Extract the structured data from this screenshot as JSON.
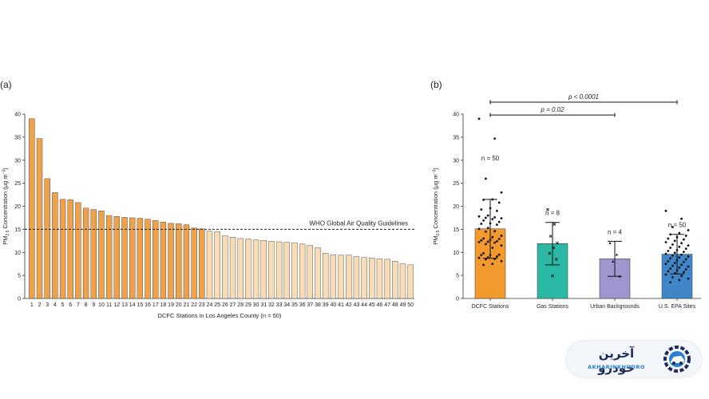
{
  "chart_data": [
    {
      "type": "bar",
      "panel_label": "(a)",
      "xlabel": "DCFC Stations in Los Angeles County (n = 50)",
      "ylabel_main": "PM",
      "ylabel_sub": "2.5",
      "ylabel_rest": " Concentration (μg m",
      "ylabel_sup": "−3",
      "ylabel_end": ")",
      "ylim": [
        0,
        40
      ],
      "yticks": [
        0,
        5,
        10,
        15,
        20,
        25,
        30,
        35,
        40
      ],
      "categories": [
        "1",
        "2",
        "3",
        "4",
        "5",
        "6",
        "7",
        "8",
        "9",
        "10",
        "11",
        "12",
        "13",
        "14",
        "15",
        "16",
        "17",
        "18",
        "19",
        "20",
        "21",
        "22",
        "23",
        "24",
        "25",
        "26",
        "27",
        "28",
        "29",
        "30",
        "31",
        "32",
        "33",
        "34",
        "35",
        "36",
        "37",
        "38",
        "39",
        "40",
        "41",
        "42",
        "43",
        "44",
        "45",
        "46",
        "47",
        "48",
        "49",
        "50"
      ],
      "values": [
        39.0,
        34.7,
        26.0,
        23.0,
        21.5,
        21.4,
        20.8,
        19.6,
        19.3,
        19.0,
        18.0,
        17.8,
        17.6,
        17.5,
        17.4,
        17.2,
        16.9,
        16.6,
        16.3,
        16.2,
        16.0,
        15.3,
        15.1,
        14.6,
        14.5,
        13.6,
        13.3,
        13.0,
        12.9,
        12.7,
        12.6,
        12.4,
        12.3,
        12.2,
        12.1,
        11.8,
        11.5,
        11.0,
        9.8,
        9.5,
        9.4,
        9.4,
        9.1,
        8.9,
        8.8,
        8.6,
        8.5,
        8.1,
        7.5,
        7.3
      ],
      "highlight_count": 23,
      "reference_line": {
        "value": 15,
        "label": "WHO Global Air Quality Guidelines"
      },
      "colors": {
        "above": "#f0a14b",
        "below": "#f9dcb4",
        "edge": "#333333"
      }
    },
    {
      "type": "bar",
      "panel_label": "(b)",
      "ylabel_main": "PM",
      "ylabel_sub": "2.5",
      "ylabel_rest": " Concentration (μg m",
      "ylabel_sup": "−3",
      "ylabel_end": ")",
      "ylim": [
        0,
        40
      ],
      "yticks": [
        0,
        5,
        10,
        15,
        20,
        25,
        30,
        35,
        40
      ],
      "categories": [
        "DCFC Stations",
        "Gas Stations",
        "Urban Backgrounds",
        "U.S. EPA Sites"
      ],
      "means": [
        15.1,
        11.9,
        8.6,
        9.6
      ],
      "sd": [
        6.4,
        4.6,
        3.8,
        4.3
      ],
      "n_labels": [
        "n = 50",
        "n = 8",
        "n = 4",
        "n = 50"
      ],
      "colors": [
        "#f39a2e",
        "#2bb8a4",
        "#9f95cf",
        "#3f87c9"
      ],
      "points": [
        [
          39.0,
          34.7,
          26.0,
          23.0,
          21.5,
          21.4,
          20.8,
          19.6,
          19.3,
          19.0,
          18.0,
          17.8,
          17.6,
          17.5,
          17.4,
          17.2,
          16.9,
          16.6,
          16.3,
          16.2,
          16.0,
          15.3,
          15.1,
          14.6,
          14.5,
          13.6,
          13.3,
          13.0,
          12.9,
          12.7,
          12.6,
          12.4,
          12.3,
          12.2,
          12.1,
          11.8,
          11.5,
          11.0,
          9.8,
          9.5,
          9.4,
          9.4,
          9.1,
          8.9,
          8.8,
          8.6,
          8.5,
          8.1,
          7.5,
          7.3
        ],
        [
          19.3,
          16.1,
          13.5,
          12.0,
          11.0,
          9.8,
          8.5,
          4.9
        ],
        [
          12.0,
          9.5,
          8.0,
          4.8
        ],
        [
          19.0,
          17.3,
          15.5,
          14.8,
          14.2,
          13.9,
          13.6,
          13.3,
          13.0,
          12.8,
          12.5,
          12.2,
          12.0,
          11.7,
          11.5,
          11.2,
          11.0,
          10.8,
          10.5,
          10.3,
          10.1,
          9.9,
          9.7,
          9.5,
          9.3,
          9.1,
          8.9,
          8.7,
          8.5,
          8.3,
          8.1,
          7.9,
          7.7,
          7.5,
          7.3,
          7.1,
          6.9,
          6.7,
          6.5,
          6.3,
          6.1,
          5.9,
          5.7,
          5.5,
          5.2,
          4.9,
          4.6,
          4.3,
          4.0,
          3.5
        ]
      ],
      "markers": [
        "dot",
        "cross",
        "triangle",
        "dot"
      ],
      "comparisons": [
        {
          "from": 0,
          "to": 3,
          "label": "p < 0.0001",
          "level": 42.6
        },
        {
          "from": 0,
          "to": 2,
          "label": "p = 0.02",
          "level": 39.8
        }
      ]
    }
  ],
  "logo": {
    "name": "آخرین خودرو",
    "subtitle": "AKHARINKHODRO",
    "emblem_icon": "gear-car-icon",
    "colors": {
      "dark": "#1c2a5a",
      "accent": "#2a7fd0"
    }
  }
}
